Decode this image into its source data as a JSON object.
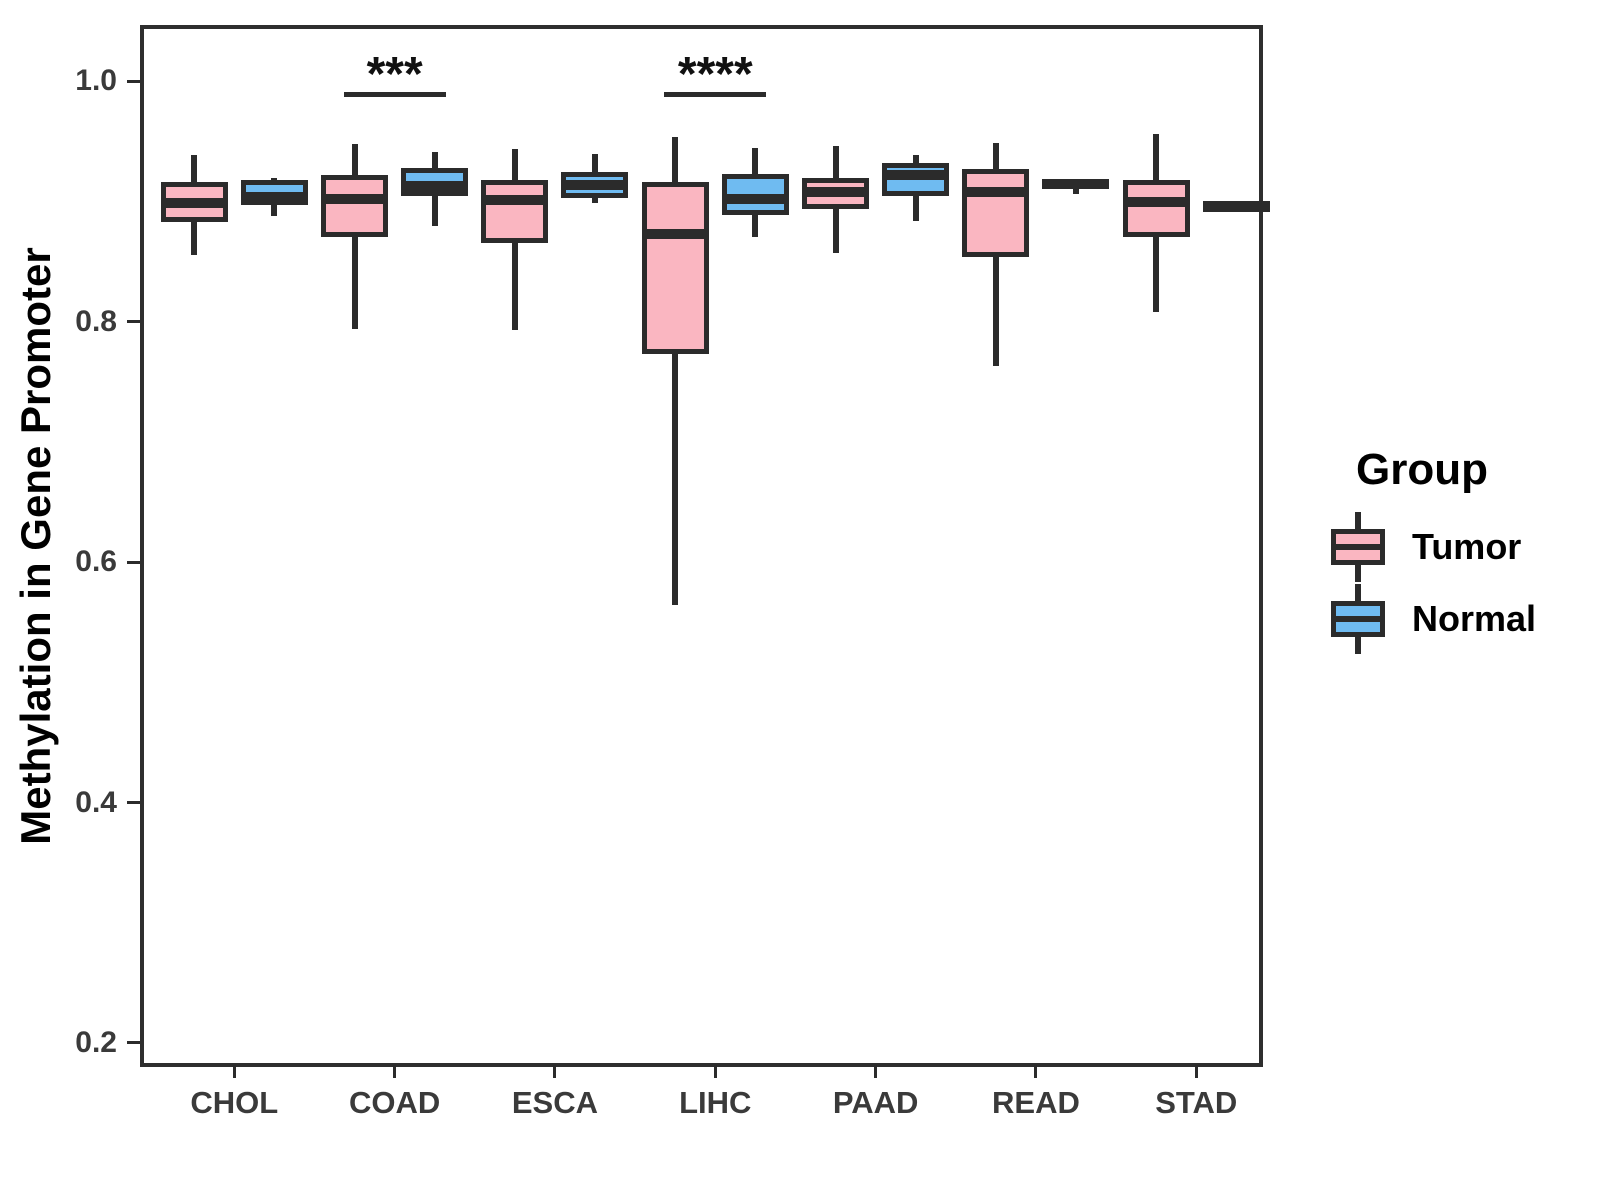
{
  "figure": {
    "y_axis_title": "Methylation in Gene Promoter"
  },
  "colors": {
    "tumor_fill": "#FAB6C1",
    "normal_fill": "#6FBBF1",
    "stroke": "#2B2B2B",
    "axis_label": "#3A3A3A",
    "background": "#FFFFFF"
  },
  "legend": {
    "title": "Group",
    "items": [
      {
        "label": "Tumor",
        "color": "#FAB6C1"
      },
      {
        "label": "Normal",
        "color": "#6FBBF1"
      }
    ]
  },
  "chart_data": {
    "type": "boxplot",
    "title": "",
    "xlabel": "",
    "ylabel": "Methylation in Gene Promoter",
    "grid": false,
    "legend_position": "right",
    "categories": [
      "CHOL",
      "COAD",
      "ESCA",
      "LIHC",
      "PAAD",
      "READ",
      "STAD"
    ],
    "y_ticks": [
      {
        "value": 0.2,
        "label": "0.2"
      },
      {
        "value": 0.4,
        "label": "0.4"
      },
      {
        "value": 0.6,
        "label": "0.6"
      },
      {
        "value": 0.8,
        "label": "0.8"
      },
      {
        "value": 1.0,
        "label": "1.0"
      }
    ],
    "ylim": [
      0.18,
      1.047
    ],
    "series": [
      {
        "name": "Tumor",
        "color": "#FAB6C1",
        "boxes": [
          {
            "category": "CHOL",
            "whisker_low": 0.856,
            "q1": 0.885,
            "median": 0.899,
            "q3": 0.914,
            "whisker_high": 0.939
          },
          {
            "category": "COAD",
            "whisker_low": 0.794,
            "q1": 0.873,
            "median": 0.902,
            "q3": 0.92,
            "whisker_high": 0.948
          },
          {
            "category": "ESCA",
            "whisker_low": 0.793,
            "q1": 0.868,
            "median": 0.901,
            "q3": 0.916,
            "whisker_high": 0.944
          },
          {
            "category": "LIHC",
            "whisker_low": 0.564,
            "q1": 0.775,
            "median": 0.873,
            "q3": 0.914,
            "whisker_high": 0.954
          },
          {
            "category": "PAAD",
            "whisker_low": 0.857,
            "q1": 0.896,
            "median": 0.908,
            "q3": 0.918,
            "whisker_high": 0.946
          },
          {
            "category": "READ",
            "whisker_low": 0.763,
            "q1": 0.856,
            "median": 0.908,
            "q3": 0.925,
            "whisker_high": 0.949
          },
          {
            "category": "STAD",
            "whisker_low": 0.808,
            "q1": 0.873,
            "median": 0.9,
            "q3": 0.916,
            "whisker_high": 0.956
          }
        ]
      },
      {
        "name": "Normal",
        "color": "#6FBBF1",
        "boxes": [
          {
            "category": "CHOL",
            "whisker_low": 0.888,
            "q1": 0.899,
            "median": 0.904,
            "q3": 0.916,
            "whisker_high": 0.92
          },
          {
            "category": "COAD",
            "whisker_low": 0.88,
            "q1": 0.907,
            "median": 0.913,
            "q3": 0.926,
            "whisker_high": 0.941
          },
          {
            "category": "ESCA",
            "whisker_low": 0.899,
            "q1": 0.905,
            "median": 0.914,
            "q3": 0.923,
            "whisker_high": 0.94
          },
          {
            "category": "LIHC",
            "whisker_low": 0.871,
            "q1": 0.891,
            "median": 0.902,
            "q3": 0.921,
            "whisker_high": 0.945
          },
          {
            "category": "PAAD",
            "whisker_low": 0.884,
            "q1": 0.907,
            "median": 0.922,
            "q3": 0.93,
            "whisker_high": 0.939
          },
          {
            "category": "READ",
            "whisker_low": 0.906,
            "q1": 0.9135,
            "median": 0.915,
            "q3": 0.917,
            "whisker_high": 0.917
          },
          {
            "category": "STAD",
            "whisker_low": 0.894,
            "q1": 0.8955,
            "median": 0.8965,
            "q3": 0.898,
            "whisker_high": 0.899
          }
        ]
      }
    ],
    "annotations": [
      {
        "category": "COAD",
        "label": "***",
        "line_y": 0.989
      },
      {
        "category": "LIHC",
        "label": "****",
        "line_y": 0.989
      }
    ]
  }
}
